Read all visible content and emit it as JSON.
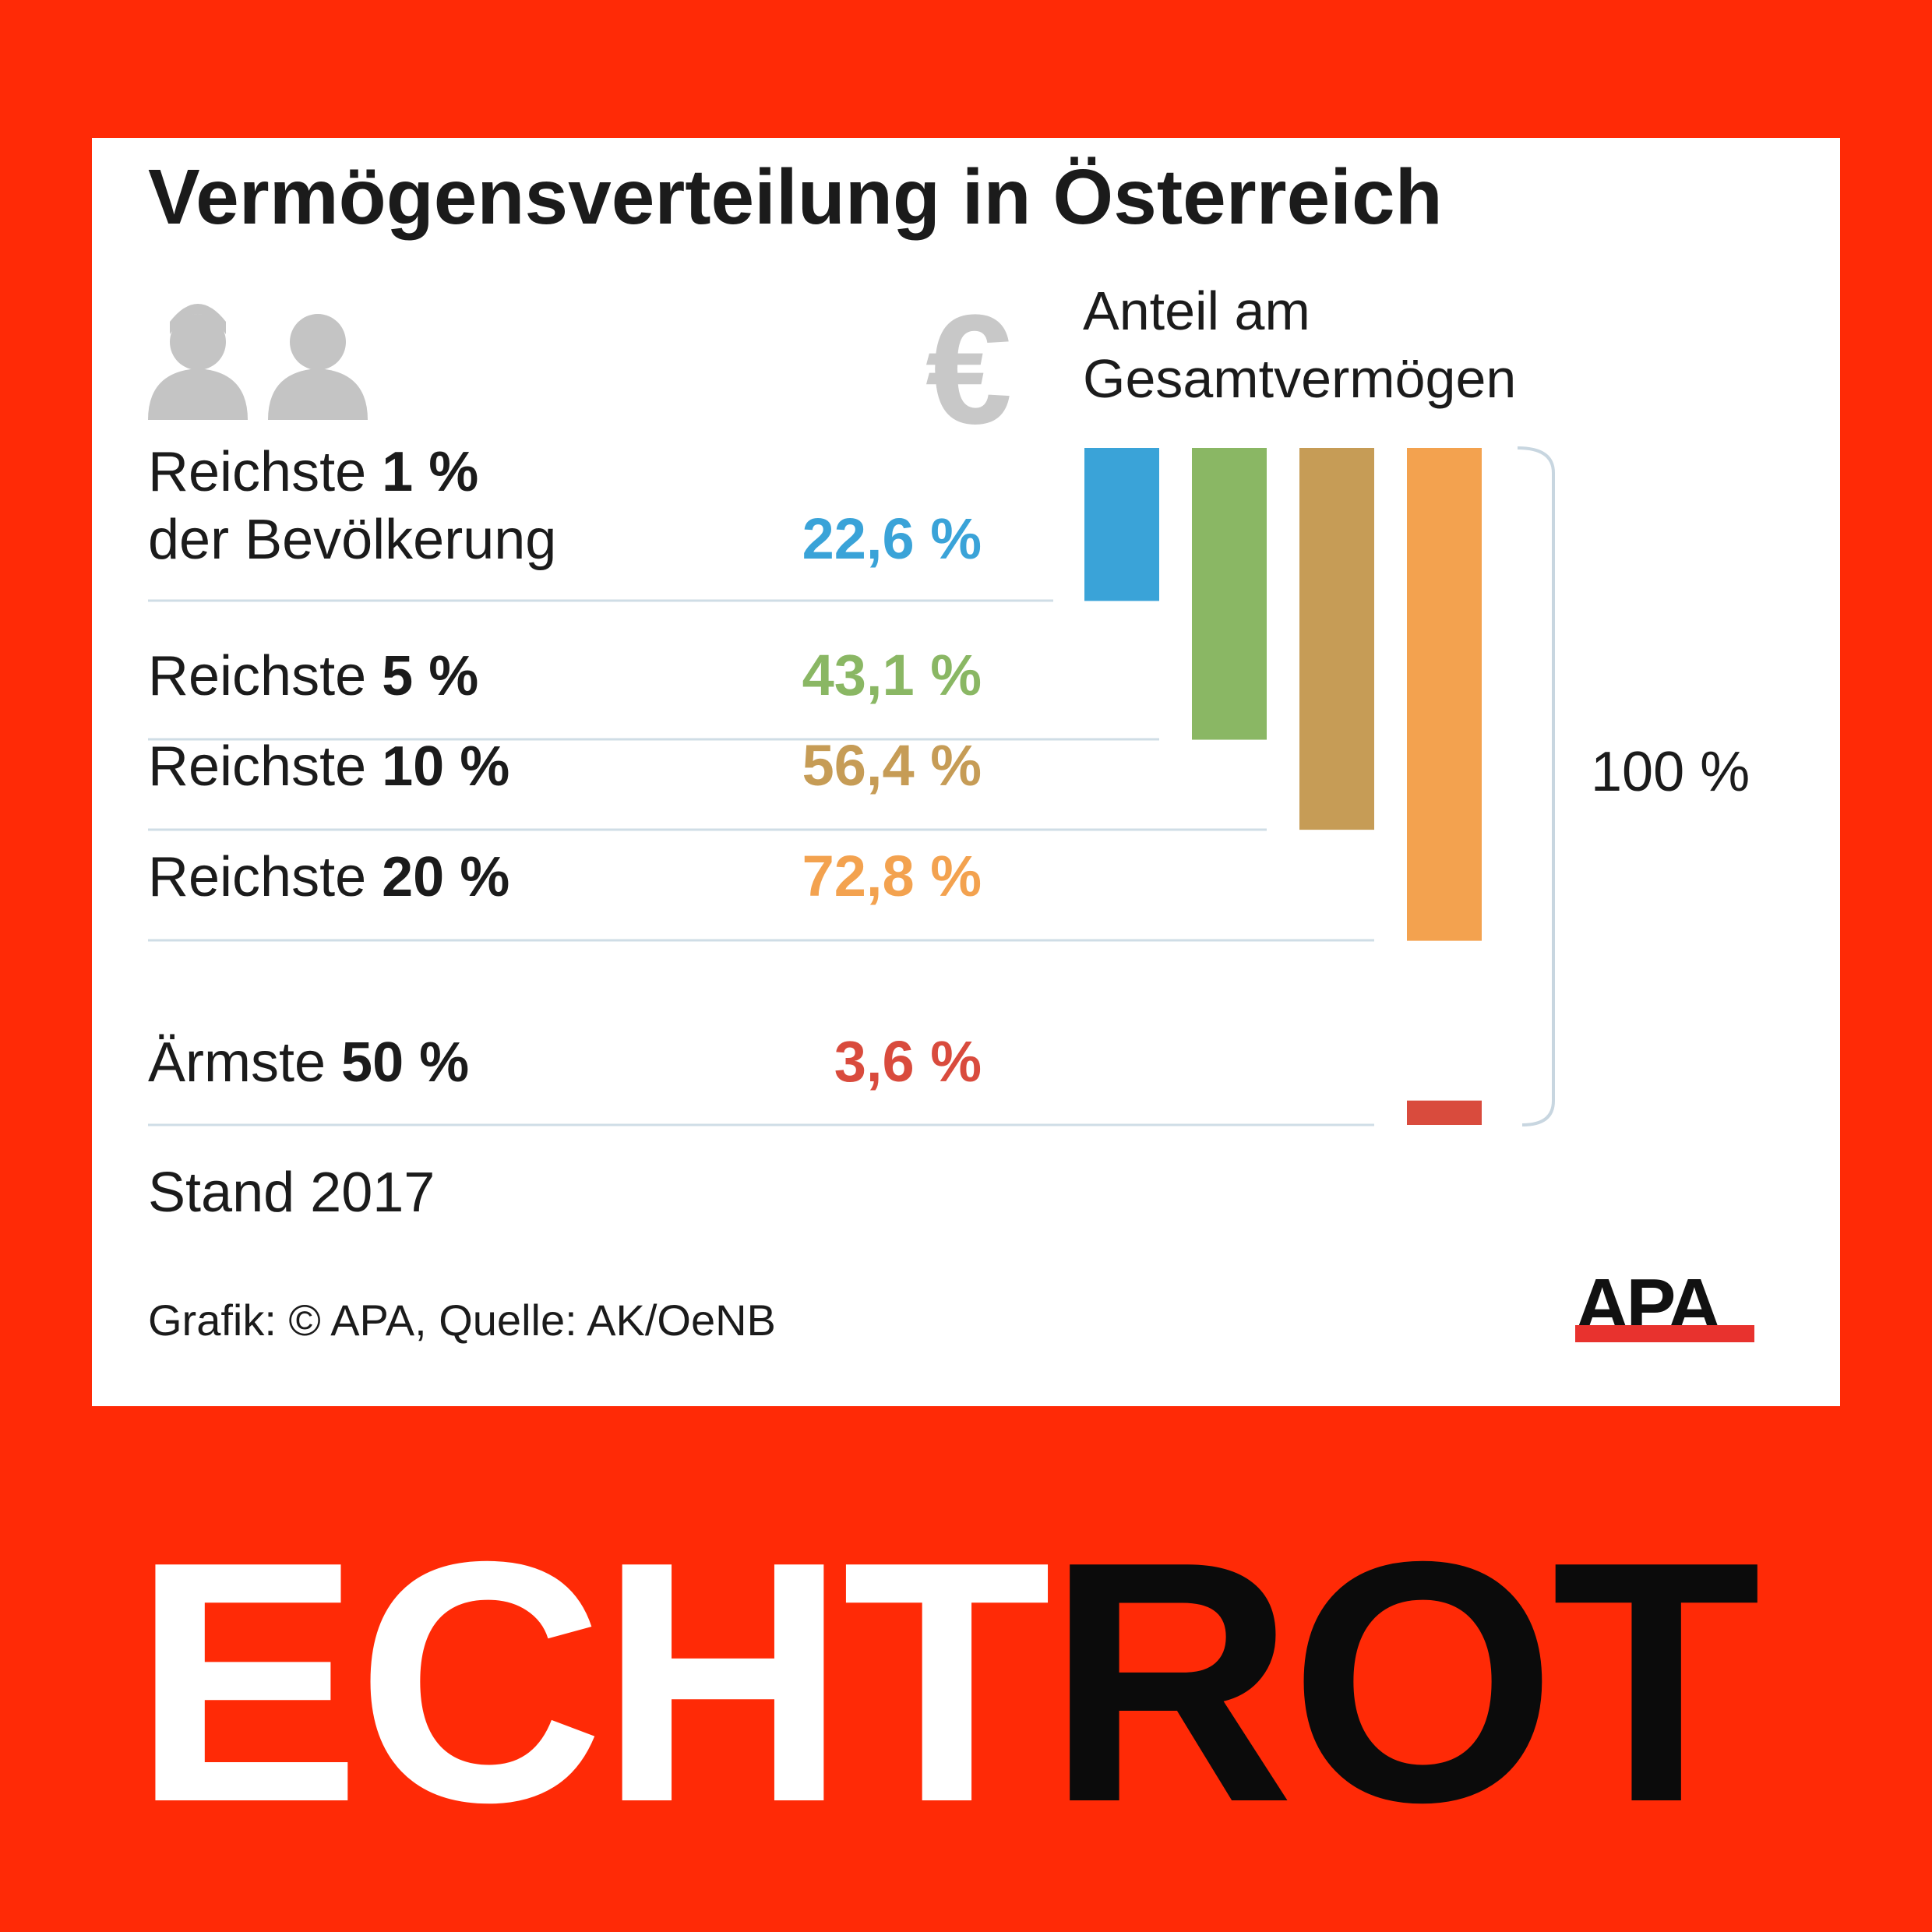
{
  "chart_data": {
    "type": "bar",
    "title": "Vermögensverteilung in Österreich",
    "value_header": "Anteil am Gesamtvermögen",
    "header_lines": [
      "Anteil am",
      "Gesamtvermögen"
    ],
    "categories": [
      {
        "prefix": "Reichste",
        "group": "1 %",
        "suffix": "der Bevölkerung",
        "value": 22.6,
        "label": "22,6 %",
        "color": "#3aa3d8"
      },
      {
        "prefix": "Reichste",
        "group": "5 %",
        "suffix": "",
        "value": 43.1,
        "label": "43,1 %",
        "color": "#8ab764"
      },
      {
        "prefix": "Reichste",
        "group": "10 %",
        "suffix": "",
        "value": 56.4,
        "label": "56,4 %",
        "color": "#c69c56"
      },
      {
        "prefix": "Reichste",
        "group": "20 %",
        "suffix": "",
        "value": 72.8,
        "label": "72,8 %",
        "color": "#f3a24f"
      },
      {
        "prefix": "Ärmste",
        "group": "50 %",
        "suffix": "",
        "value": 3.6,
        "label": "3,6 %",
        "color": "#d94b3d"
      }
    ],
    "total_label": "100 %",
    "ylim": [
      0,
      100
    ],
    "note": "Stand 2017",
    "source": "Grafik: © APA, Quelle: AK/OeNB",
    "legend": "none",
    "grid": false
  },
  "logo": {
    "text": "APA",
    "bar_color": "#e8322e"
  },
  "icons": {
    "people": "people-icon",
    "euro": "euro-icon",
    "euro_glyph": "€"
  },
  "brand": {
    "part1": "ECHT",
    "part2": "ROT",
    "part1_color": "#ffffff",
    "part2_color": "#0b0b0b"
  }
}
